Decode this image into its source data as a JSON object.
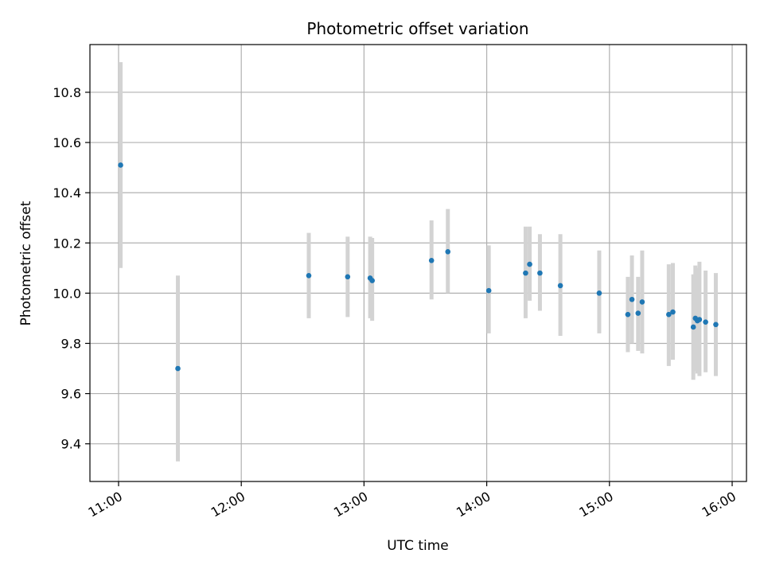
{
  "chart_data": {
    "type": "scatter",
    "title": "Photometric offset variation",
    "xlabel": "UTC time",
    "ylabel": "Photometric offset",
    "xlim": [
      "10:46",
      "16:07"
    ],
    "ylim": [
      9.25,
      10.99
    ],
    "x_ticks": [
      "11:00",
      "12:00",
      "13:00",
      "14:00",
      "15:00",
      "16:00"
    ],
    "y_ticks": [
      "9.4",
      "9.6",
      "9.8",
      "10.0",
      "10.2",
      "10.4",
      "10.6",
      "10.8"
    ],
    "grid": true,
    "colors": {
      "point": "#1f77b4",
      "errorbar": "#d3d3d3",
      "grid": "#b0b0b0",
      "axis": "#000000"
    },
    "points": [
      {
        "time": "11:01",
        "y": 10.51,
        "err_low": 10.1,
        "err_high": 10.92
      },
      {
        "time": "11:29",
        "y": 9.7,
        "err_low": 9.33,
        "err_high": 10.07
      },
      {
        "time": "12:33",
        "y": 10.07,
        "err_low": 9.9,
        "err_high": 10.24
      },
      {
        "time": "12:52",
        "y": 10.065,
        "err_low": 9.905,
        "err_high": 10.225
      },
      {
        "time": "13:03",
        "y": 10.06,
        "err_low": 9.9,
        "err_high": 10.225
      },
      {
        "time": "13:04",
        "y": 10.05,
        "err_low": 9.89,
        "err_high": 10.22
      },
      {
        "time": "13:33",
        "y": 10.13,
        "err_low": 9.975,
        "err_high": 10.29
      },
      {
        "time": "13:41",
        "y": 10.165,
        "err_low": 10.0,
        "err_high": 10.335
      },
      {
        "time": "14:01",
        "y": 10.01,
        "err_low": 9.84,
        "err_high": 10.19
      },
      {
        "time": "14:19",
        "y": 10.08,
        "err_low": 9.9,
        "err_high": 10.265
      },
      {
        "time": "14:21",
        "y": 10.115,
        "err_low": 9.97,
        "err_high": 10.265
      },
      {
        "time": "14:26",
        "y": 10.08,
        "err_low": 9.93,
        "err_high": 10.235
      },
      {
        "time": "14:36",
        "y": 10.03,
        "err_low": 9.83,
        "err_high": 10.235
      },
      {
        "time": "14:55",
        "y": 10.0,
        "err_low": 9.84,
        "err_high": 10.17
      },
      {
        "time": "15:09",
        "y": 9.915,
        "err_low": 9.765,
        "err_high": 10.065
      },
      {
        "time": "15:11",
        "y": 9.975,
        "err_low": 9.8,
        "err_high": 10.15
      },
      {
        "time": "15:14",
        "y": 9.92,
        "err_low": 9.77,
        "err_high": 10.065
      },
      {
        "time": "15:16",
        "y": 9.965,
        "err_low": 9.76,
        "err_high": 10.17
      },
      {
        "time": "15:29",
        "y": 9.915,
        "err_low": 9.71,
        "err_high": 10.115
      },
      {
        "time": "15:31",
        "y": 9.925,
        "err_low": 9.735,
        "err_high": 10.12
      },
      {
        "time": "15:41",
        "y": 9.865,
        "err_low": 9.655,
        "err_high": 10.075
      },
      {
        "time": "15:42",
        "y": 9.9,
        "err_low": 9.69,
        "err_high": 10.11
      },
      {
        "time": "15:43",
        "y": 9.89,
        "err_low": 9.68,
        "err_high": 10.1
      },
      {
        "time": "15:44",
        "y": 9.895,
        "err_low": 9.67,
        "err_high": 10.125
      },
      {
        "time": "15:47",
        "y": 9.885,
        "err_low": 9.685,
        "err_high": 10.09
      },
      {
        "time": "15:52",
        "y": 9.875,
        "err_low": 9.67,
        "err_high": 10.08
      }
    ]
  }
}
